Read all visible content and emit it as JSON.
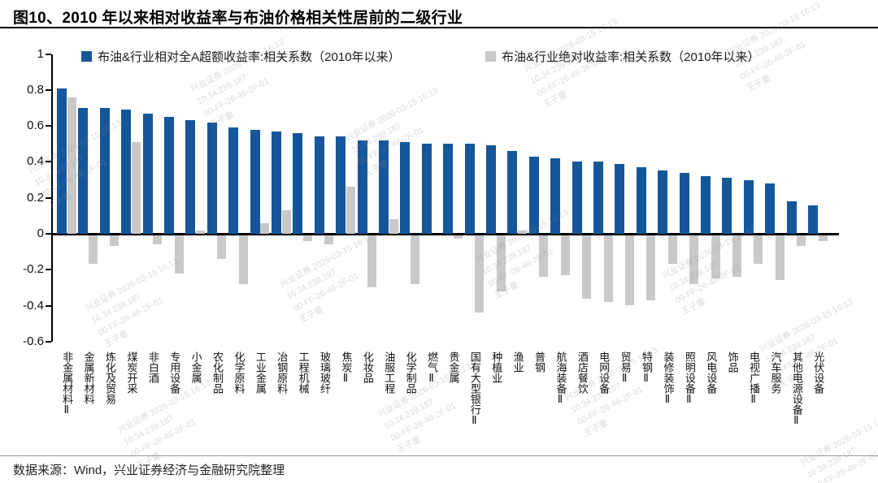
{
  "title": "图10、2010 年以来相对收益率与布油价格相关性居前的二级行业",
  "footer": {
    "source_text": "数据来源：Wind，兴业证券经济与金融研究院整理"
  },
  "watermark": {
    "lines": [
      "兴业证券 2026-03-15 16:13",
      "10.34.239.187",
      "00-FF-26-46-2F-01",
      "王子童"
    ]
  },
  "colors": {
    "series_relative": "#15569b",
    "series_absolute": "#c9c9c9",
    "axis": "#000000"
  },
  "chart_data": {
    "type": "bar",
    "title": "图10、2010 年以来相对收益率与布油价格相关性居前的二级行业",
    "legend_position": "top",
    "grid": false,
    "ylim": [
      -0.6,
      1
    ],
    "yticks": [
      1,
      0.8,
      0.6,
      0.4,
      0.2,
      0,
      -0.2,
      -0.4,
      -0.6
    ],
    "xlabel": "",
    "ylabel": "",
    "categories": [
      "非金属材料Ⅱ",
      "金属新材料",
      "炼化及贸易",
      "煤炭开采",
      "非白酒",
      "专用设备",
      "小金属",
      "农化制品",
      "化学原料",
      "工业金属",
      "冶钢原料",
      "工程机械",
      "玻璃玻纤",
      "焦炭Ⅱ",
      "化妆品",
      "油服工程",
      "化学制品",
      "燃气Ⅱ",
      "贵金属",
      "国有大型银行Ⅱ",
      "种植业",
      "渔业",
      "普钢",
      "航海装备Ⅱ",
      "酒店餐饮",
      "电网设备",
      "贸易Ⅱ",
      "特钢Ⅱ",
      "装修装饰Ⅱ",
      "照明设备Ⅱ",
      "风电设备",
      "饰品",
      "电视广播Ⅱ",
      "汽车服务",
      "其他电源设备Ⅱ",
      "光伏设备"
    ],
    "series": [
      {
        "name": "布油&行业相对全A超额收益率:相关系数（2010年以来）",
        "color": "#15569b",
        "values": [
          0.81,
          0.7,
          0.7,
          0.69,
          0.67,
          0.65,
          0.63,
          0.62,
          0.59,
          0.58,
          0.57,
          0.56,
          0.54,
          0.54,
          0.52,
          0.52,
          0.51,
          0.5,
          0.5,
          0.5,
          0.49,
          0.46,
          0.43,
          0.42,
          0.4,
          0.4,
          0.39,
          0.37,
          0.35,
          0.34,
          0.32,
          0.31,
          0.3,
          0.28,
          0.18,
          0.16
        ]
      },
      {
        "name": "布油&行业绝对收益率:相关系数（2010年以来）",
        "color": "#c9c9c9",
        "values": [
          0.76,
          -0.16,
          -0.06,
          0.51,
          -0.05,
          -0.21,
          0.02,
          -0.13,
          -0.27,
          0.06,
          0.13,
          -0.03,
          -0.05,
          0.26,
          -0.29,
          0.08,
          -0.27,
          0.0,
          -0.02,
          -0.43,
          -0.31,
          0.02,
          -0.23,
          -0.22,
          -0.35,
          -0.37,
          -0.39,
          -0.36,
          -0.16,
          -0.27,
          -0.24,
          -0.23,
          -0.16,
          -0.25,
          -0.06,
          -0.03
        ]
      }
    ]
  }
}
